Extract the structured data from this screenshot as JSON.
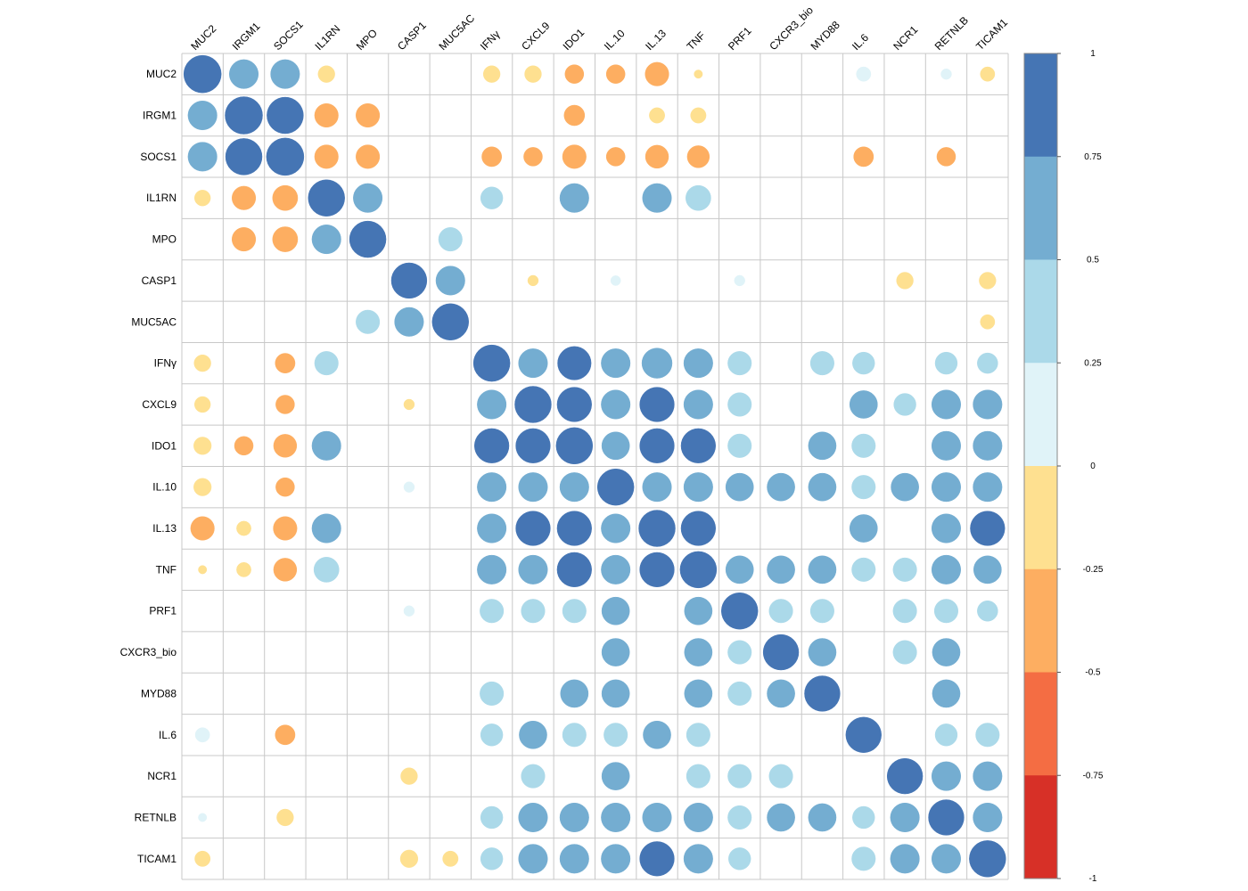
{
  "chart_data": {
    "type": "heatmap",
    "style": "circle correlation matrix",
    "title": "",
    "variables": [
      "MUC2",
      "IRGM1",
      "SOCS1",
      "IL1RN",
      "MPO",
      "CASP1",
      "MUC5AC",
      "IFNγ",
      "CXCL9",
      "IDO1",
      "IL.10",
      "IL.13",
      "TNF",
      "PRF1",
      "CXCR3_bio",
      "MYD88",
      "IL.6",
      "NCR1",
      "RETNLB",
      "TICAM1"
    ],
    "value_range": [
      -1,
      1
    ],
    "grid": true,
    "legend_position": "right",
    "colorbar": {
      "ticks": [
        "1",
        "0.75",
        "0.5",
        "0.25",
        "0",
        "-0.25",
        "-0.5",
        "-0.75",
        "-1"
      ],
      "bins": [
        {
          "from": 0.75,
          "to": 1,
          "color": "#4575b4"
        },
        {
          "from": 0.5,
          "to": 0.75,
          "color": "#74add1"
        },
        {
          "from": 0.25,
          "to": 0.5,
          "color": "#abd9e9"
        },
        {
          "from": 0,
          "to": 0.25,
          "color": "#e0f3f8"
        },
        {
          "from": -0.25,
          "to": 0,
          "color": "#fee090"
        },
        {
          "from": -0.5,
          "to": -0.25,
          "color": "#fdae61"
        },
        {
          "from": -0.75,
          "to": -0.5,
          "color": "#f46d43"
        },
        {
          "from": -1,
          "to": -0.75,
          "color": "#d73027"
        }
      ]
    },
    "matrix": [
      [
        1,
        0.6,
        0.6,
        -0.2,
        null,
        null,
        null,
        -0.2,
        -0.2,
        -0.25,
        -0.25,
        -0.4,
        -0.05,
        null,
        null,
        null,
        0.15,
        null,
        0.08,
        -0.15
      ],
      [
        0.6,
        1,
        0.95,
        -0.4,
        -0.4,
        null,
        null,
        null,
        null,
        -0.3,
        null,
        -0.17,
        -0.17,
        null,
        null,
        null,
        null,
        null,
        null,
        null
      ],
      [
        0.6,
        0.95,
        1,
        -0.4,
        -0.4,
        null,
        null,
        -0.28,
        -0.25,
        -0.4,
        -0.25,
        -0.38,
        -0.35,
        null,
        null,
        null,
        -0.28,
        null,
        -0.25,
        null
      ],
      [
        -0.18,
        -0.4,
        -0.45,
        0.95,
        0.6,
        null,
        null,
        0.35,
        null,
        0.6,
        null,
        0.6,
        0.45,
        null,
        null,
        null,
        null,
        null,
        null,
        null
      ],
      [
        null,
        -0.4,
        -0.45,
        0.6,
        0.95,
        null,
        0.4,
        null,
        null,
        null,
        null,
        null,
        null,
        null,
        null,
        null,
        null,
        null,
        null,
        null
      ],
      [
        null,
        null,
        null,
        null,
        null,
        0.9,
        0.6,
        null,
        -0.08,
        null,
        0.07,
        null,
        null,
        0.08,
        null,
        null,
        null,
        -0.2,
        null,
        -0.2
      ],
      [
        null,
        null,
        null,
        null,
        0.4,
        0.6,
        0.95,
        null,
        null,
        null,
        null,
        null,
        null,
        null,
        null,
        null,
        null,
        null,
        null,
        -0.15
      ],
      [
        -0.2,
        null,
        -0.28,
        0.4,
        null,
        null,
        null,
        0.95,
        0.6,
        0.8,
        0.6,
        0.65,
        0.6,
        0.4,
        null,
        0.4,
        0.35,
        null,
        0.35,
        0.3
      ],
      [
        -0.18,
        null,
        -0.25,
        null,
        null,
        -0.08,
        null,
        0.6,
        0.95,
        0.85,
        0.6,
        0.85,
        0.6,
        0.4,
        null,
        null,
        0.55,
        0.35,
        0.6,
        0.6
      ],
      [
        -0.22,
        -0.25,
        -0.38,
        0.6,
        null,
        null,
        null,
        0.85,
        0.85,
        0.95,
        0.55,
        0.85,
        0.85,
        0.4,
        null,
        0.55,
        0.4,
        null,
        0.6,
        0.6
      ],
      [
        -0.22,
        null,
        -0.25,
        null,
        null,
        0.08,
        null,
        0.6,
        0.6,
        0.6,
        0.95,
        0.6,
        0.6,
        0.55,
        0.55,
        0.55,
        0.4,
        0.55,
        0.6,
        0.6
      ],
      [
        -0.4,
        -0.15,
        -0.4,
        0.6,
        null,
        null,
        null,
        0.6,
        0.85,
        0.85,
        0.6,
        0.95,
        0.85,
        null,
        null,
        null,
        0.55,
        null,
        0.6,
        0.85
      ],
      [
        -0.05,
        -0.15,
        -0.38,
        0.45,
        null,
        null,
        null,
        0.6,
        0.6,
        0.85,
        0.6,
        0.85,
        0.95,
        0.55,
        0.55,
        0.55,
        0.4,
        0.4,
        0.6,
        0.55
      ],
      [
        null,
        null,
        null,
        null,
        null,
        0.08,
        null,
        0.4,
        0.4,
        0.4,
        0.55,
        null,
        0.55,
        0.95,
        0.4,
        0.4,
        null,
        0.4,
        0.4,
        0.3
      ],
      [
        null,
        null,
        null,
        null,
        null,
        null,
        null,
        null,
        null,
        null,
        0.55,
        null,
        0.55,
        0.4,
        0.9,
        0.55,
        null,
        0.4,
        0.55,
        null
      ],
      [
        null,
        null,
        null,
        null,
        null,
        null,
        null,
        0.4,
        null,
        0.55,
        0.55,
        null,
        0.55,
        0.4,
        0.55,
        0.9,
        null,
        null,
        0.55,
        null
      ],
      [
        0.15,
        null,
        -0.28,
        null,
        null,
        null,
        null,
        0.35,
        0.55,
        0.4,
        0.4,
        0.55,
        0.4,
        null,
        null,
        null,
        0.9,
        null,
        0.35,
        0.4
      ],
      [
        null,
        null,
        null,
        null,
        null,
        -0.2,
        null,
        null,
        0.4,
        null,
        0.55,
        null,
        0.4,
        0.4,
        0.4,
        null,
        null,
        0.9,
        0.6,
        0.6
      ],
      [
        0.05,
        null,
        -0.2,
        null,
        null,
        null,
        null,
        0.35,
        0.6,
        0.6,
        0.6,
        0.6,
        0.6,
        0.4,
        0.55,
        0.55,
        0.35,
        0.6,
        0.9,
        0.6
      ],
      [
        -0.17,
        null,
        null,
        null,
        null,
        -0.22,
        -0.17,
        0.35,
        0.6,
        0.6,
        0.6,
        0.85,
        0.6,
        0.35,
        null,
        null,
        0.4,
        0.6,
        0.6,
        0.95
      ]
    ]
  }
}
